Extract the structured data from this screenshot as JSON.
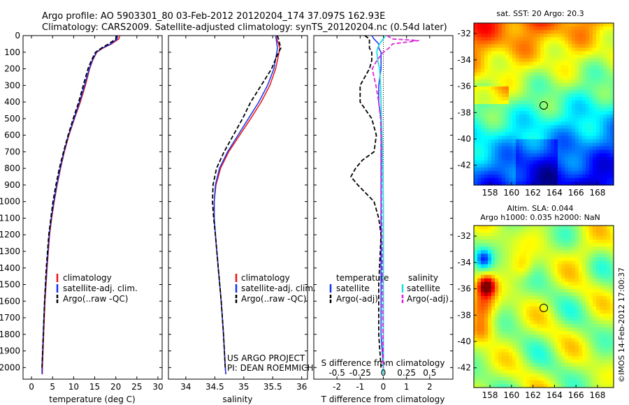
{
  "title_line1": "Argo profile: AO 5903301_80 03-Feb-2012 20120204_174 37.097S 162.93E",
  "title_line2": "Climatology: CARS2009. Satellite-adjusted climatology: synTS_20120204.nc (0.54d later)",
  "side_stamp": "©IMOS 14-Feb-2012 17:00:37",
  "colors": {
    "climatology": "#ee1111",
    "satellite": "#1133ee",
    "argo": "#000000",
    "sal_sat": "#22dddd",
    "sal_argo": "#dd22dd"
  },
  "chart_data": [
    {
      "type": "line",
      "xlabel": "temperature (deg C)",
      "xlim": [
        -2,
        31
      ],
      "ylim": [
        2070,
        0
      ],
      "xticks": [
        "0",
        "5",
        "10",
        "15",
        "20",
        "25",
        "30"
      ],
      "yticks": [
        "0",
        "100",
        "200",
        "300",
        "400",
        "500",
        "600",
        "700",
        "800",
        "900",
        "1000",
        "1100",
        "1200",
        "1300",
        "1400",
        "1500",
        "1600",
        "1700",
        "1800",
        "1900",
        "2000"
      ],
      "legend": [
        "climatology",
        "satellite-adj. clim.",
        "Argo(..raw -QC)"
      ],
      "series": [
        {
          "name": "climatology",
          "depth": [
            0,
            20,
            50,
            75,
            100,
            150,
            200,
            300,
            400,
            500,
            600,
            700,
            800,
            900,
            1000,
            1100,
            1200,
            1400,
            1600,
            1800,
            2000,
            2040
          ],
          "values": [
            21.0,
            20.7,
            19.0,
            17.0,
            15.5,
            14.5,
            13.8,
            12.8,
            11.6,
            10.2,
            8.9,
            7.8,
            6.9,
            6.1,
            5.4,
            4.8,
            4.3,
            3.7,
            3.2,
            2.9,
            2.6,
            2.6
          ]
        },
        {
          "name": "satellite-adj. clim.",
          "depth": [
            0,
            20,
            50,
            75,
            100,
            150,
            200,
            300,
            400,
            500,
            600,
            700,
            800,
            900,
            1000,
            1100,
            1200,
            1400,
            1600,
            1800,
            2000,
            2040
          ],
          "values": [
            20.5,
            20.3,
            18.8,
            16.8,
            15.4,
            14.4,
            13.7,
            12.6,
            11.4,
            10.1,
            8.8,
            7.7,
            6.8,
            6.0,
            5.3,
            4.7,
            4.2,
            3.6,
            3.1,
            2.8,
            2.5,
            2.5
          ]
        },
        {
          "name": "Argo(..raw -QC)",
          "depth": [
            0,
            20,
            50,
            75,
            100,
            150,
            200,
            300,
            400,
            500,
            600,
            700,
            800,
            900,
            1000,
            1100,
            1200,
            1400,
            1600,
            1800,
            2000
          ],
          "values": [
            20.2,
            20.0,
            18.3,
            16.6,
            15.2,
            14.2,
            13.4,
            12.3,
            11.2,
            9.9,
            8.7,
            7.6,
            6.6,
            5.8,
            5.1,
            4.6,
            4.1,
            3.5,
            3.1,
            2.8,
            2.5
          ]
        }
      ]
    },
    {
      "type": "line",
      "xlabel": "salinity",
      "xlim": [
        33.7,
        36.1
      ],
      "ylim": [
        2070,
        0
      ],
      "xticks": [
        "34",
        "34.5",
        "35",
        "35.5",
        "36"
      ],
      "legend": [
        "climatology",
        "satellite-adj. clim.",
        "Argo(..raw -QC)"
      ],
      "annotation": [
        "US ARGO PROJECT",
        "PI: DEAN ROEMMICH"
      ],
      "series": [
        {
          "name": "climatology",
          "depth": [
            0,
            20,
            50,
            75,
            100,
            200,
            300,
            400,
            500,
            600,
            700,
            800,
            900,
            1000,
            1100,
            1200,
            1400,
            1600,
            1800,
            2000,
            2040
          ],
          "values": [
            35.56,
            35.57,
            35.6,
            35.62,
            35.61,
            35.55,
            35.45,
            35.3,
            35.12,
            34.93,
            34.74,
            34.6,
            34.52,
            34.49,
            34.49,
            34.51,
            34.56,
            34.61,
            34.65,
            34.68,
            34.69
          ]
        },
        {
          "name": "satellite-adj. clim.",
          "depth": [
            0,
            20,
            50,
            75,
            100,
            200,
            300,
            400,
            500,
            600,
            700,
            800,
            900,
            1000,
            1100,
            1200,
            1400,
            1600,
            1800,
            2000,
            2040
          ],
          "values": [
            35.55,
            35.56,
            35.57,
            35.58,
            35.57,
            35.52,
            35.41,
            35.26,
            35.08,
            34.9,
            34.72,
            34.58,
            34.51,
            34.49,
            34.49,
            34.51,
            34.56,
            34.61,
            34.65,
            34.68,
            34.69
          ]
        },
        {
          "name": "Argo(..raw -QC)",
          "depth": [
            0,
            20,
            50,
            75,
            100,
            200,
            300,
            400,
            500,
            600,
            700,
            800,
            900,
            1000,
            1100,
            1200,
            1400,
            1600,
            1800,
            2000
          ],
          "values": [
            35.58,
            35.6,
            35.62,
            35.64,
            35.6,
            35.48,
            35.3,
            35.12,
            34.98,
            34.82,
            34.66,
            34.53,
            34.47,
            34.46,
            34.48,
            34.51,
            34.56,
            34.61,
            34.65,
            34.68
          ]
        }
      ]
    },
    {
      "type": "line",
      "xlabel": "T difference from climatology",
      "xlabel_top": "S difference from climatology",
      "xlim": [
        -3,
        3
      ],
      "ylim": [
        2070,
        0
      ],
      "xticks": [
        "-2",
        "-1",
        "0",
        "1",
        "2"
      ],
      "xticks_top": [
        "-0.5",
        "-0.25",
        "0",
        "0.25",
        "0.5"
      ],
      "legend_headers": [
        "temperature",
        "salinity"
      ],
      "legend": [
        "satellite",
        "Argo(-adj)",
        "satellite",
        "Argo(-adj)"
      ],
      "series": [
        {
          "name": "temperature satellite",
          "depth": [
            0,
            20,
            50,
            75,
            100,
            150,
            200,
            300,
            400,
            500,
            600,
            700,
            800,
            1000,
            1200,
            1500,
            1800,
            2000,
            2040
          ],
          "values": [
            -0.5,
            -0.4,
            -0.2,
            -0.2,
            -0.1,
            -0.1,
            -0.1,
            -0.2,
            -0.2,
            -0.1,
            -0.1,
            -0.1,
            -0.1,
            -0.1,
            -0.1,
            -0.1,
            -0.1,
            0.0,
            0.0
          ]
        },
        {
          "name": "temperature Argo(-adj)",
          "depth": [
            0,
            20,
            50,
            75,
            100,
            150,
            200,
            300,
            400,
            500,
            600,
            700,
            750,
            800,
            850,
            900,
            1000,
            1100,
            1200,
            1500,
            1800,
            2000
          ],
          "values": [
            -0.8,
            -0.6,
            -0.6,
            -0.6,
            -0.5,
            -0.5,
            -0.6,
            -1.0,
            -1.0,
            -0.5,
            -0.3,
            -0.4,
            -0.9,
            -1.2,
            -1.4,
            -1.1,
            -0.4,
            -0.2,
            -0.1,
            -0.2,
            -0.2,
            -0.1
          ]
        },
        {
          "name": "salinity satellite",
          "depth": [
            0,
            20,
            50,
            75,
            100,
            150,
            200,
            300,
            500,
            700,
            1000,
            1500,
            2000,
            2040
          ],
          "values": [
            0.02,
            0.0,
            -0.04,
            -0.06,
            -0.07,
            -0.06,
            -0.04,
            -0.03,
            -0.02,
            -0.01,
            0.0,
            0.0,
            0.0,
            0.0
          ]
        },
        {
          "name": "salinity Argo(-adj)",
          "depth": [
            0,
            20,
            30,
            50,
            75,
            100,
            150,
            200,
            300,
            400,
            500,
            700,
            1000,
            1500,
            2000
          ],
          "values": [
            0.04,
            0.1,
            0.38,
            0.1,
            0.06,
            0.0,
            -0.07,
            -0.12,
            -0.08,
            -0.05,
            -0.03,
            -0.02,
            -0.02,
            -0.01,
            0.0
          ]
        }
      ]
    },
    {
      "type": "heatmap",
      "title": "sat. SST: 20 Argo: 20.3",
      "xticks": [
        "158",
        "160",
        "162",
        "164",
        "166",
        "168"
      ],
      "yticks": [
        "-32",
        "-34",
        "-36",
        "-38",
        "-40",
        "-42"
      ],
      "xlim": [
        156.5,
        169.5
      ],
      "ylim": [
        -43.5,
        -31.2
      ],
      "marker": {
        "lon": 162.93,
        "lat": -37.1
      }
    },
    {
      "type": "heatmap",
      "title_line1": "Altim. SLA: 0.044",
      "title_line2": "Argo h1000: 0.035 h2000: NaN",
      "xticks": [
        "158",
        "160",
        "162",
        "164",
        "166",
        "168"
      ],
      "yticks": [
        "-32",
        "-34",
        "-36",
        "-38",
        "-40",
        "-42"
      ],
      "xlim": [
        156.5,
        169.5
      ],
      "ylim": [
        -43.5,
        -31.2
      ],
      "marker": {
        "lon": 162.93,
        "lat": -37.1
      }
    }
  ]
}
